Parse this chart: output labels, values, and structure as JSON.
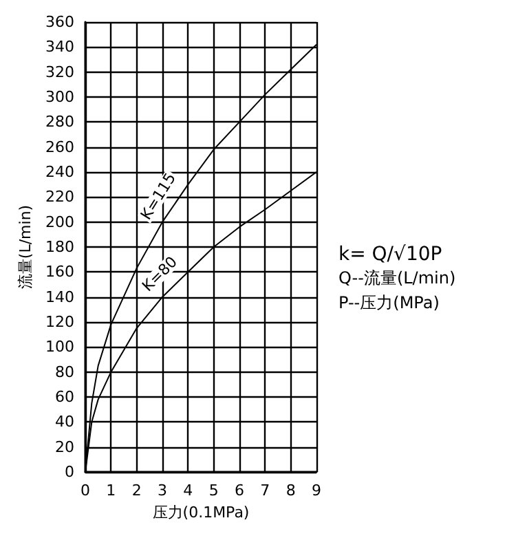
{
  "chart_data": {
    "type": "line",
    "xlabel": "压力(0.1MPa)",
    "ylabel": "流量(L/min)",
    "xlim": [
      0,
      9
    ],
    "xticks": [
      0,
      1,
      2,
      3,
      4,
      5,
      6,
      7,
      8,
      9
    ],
    "ylim": [
      0,
      360
    ],
    "yticks": [
      0,
      20,
      40,
      60,
      80,
      100,
      120,
      140,
      160,
      180,
      200,
      220,
      240,
      260,
      280,
      300,
      320,
      340,
      360
    ],
    "grid": true,
    "legend": false,
    "marker": "none",
    "line_style": "solid",
    "series": [
      {
        "name": "K=115",
        "color": "#000000",
        "x": [
          0,
          0.25,
          0.5,
          1,
          2,
          3,
          4,
          5,
          6,
          7,
          8,
          9
        ],
        "values": [
          0,
          55,
          85,
          118,
          163,
          200,
          230,
          258,
          280,
          302,
          322,
          342
        ]
      },
      {
        "name": "K=80",
        "color": "#000000",
        "x": [
          0,
          0.25,
          0.5,
          1,
          2,
          3,
          4,
          5,
          6,
          7,
          8,
          9
        ],
        "values": [
          0,
          40,
          58,
          80,
          115,
          140,
          160,
          180,
          196,
          210,
          225,
          240
        ]
      }
    ],
    "annotations": [
      "k= Q/√10P",
      "Q--流量(L/min)",
      "P--压力(MPa)"
    ]
  }
}
